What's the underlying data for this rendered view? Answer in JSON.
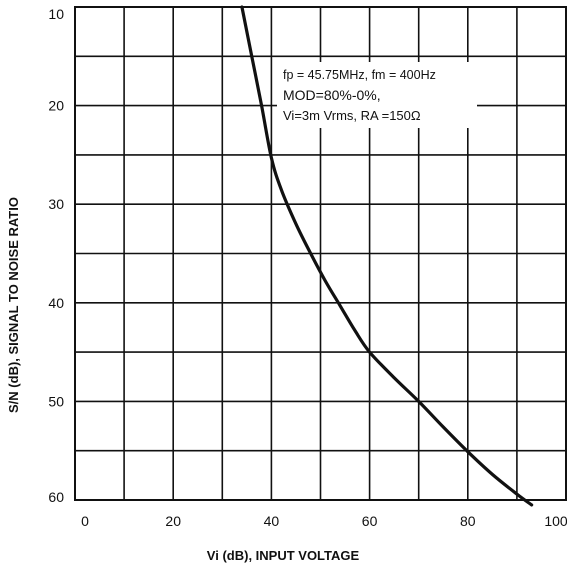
{
  "chart_data": {
    "type": "line",
    "xlabel": "Vi (dB), INPUT VOLTAGE",
    "ylabel": "S/N (dB), SIGNAL TO NOISE RATIO",
    "xlim": [
      0,
      100
    ],
    "ylim": [
      10,
      60
    ],
    "y_inverted": true,
    "x_ticks": [
      0,
      20,
      40,
      60,
      80,
      100
    ],
    "y_ticks": [
      10,
      20,
      30,
      40,
      50,
      60
    ],
    "x_minor_grid_step": 10,
    "y_minor_grid_step": 5,
    "grid": true,
    "annotation_lines": [
      "fp = 45.75MHz, fm = 400Hz",
      "MOD=80%-0%,",
      "Vi=3m Vrms, RA =150Ω"
    ],
    "series": [
      {
        "x": [
          34,
          36,
          38,
          40,
          42,
          45,
          48,
          51,
          54,
          57,
          60,
          65,
          70,
          75,
          80,
          85,
          90,
          93
        ],
        "y": [
          10,
          15,
          20,
          25.3,
          28.5,
          32,
          35,
          37.8,
          40.3,
          42.8,
          45,
          47.6,
          50,
          52.6,
          55.1,
          57.4,
          59.4,
          60.5
        ]
      }
    ]
  }
}
